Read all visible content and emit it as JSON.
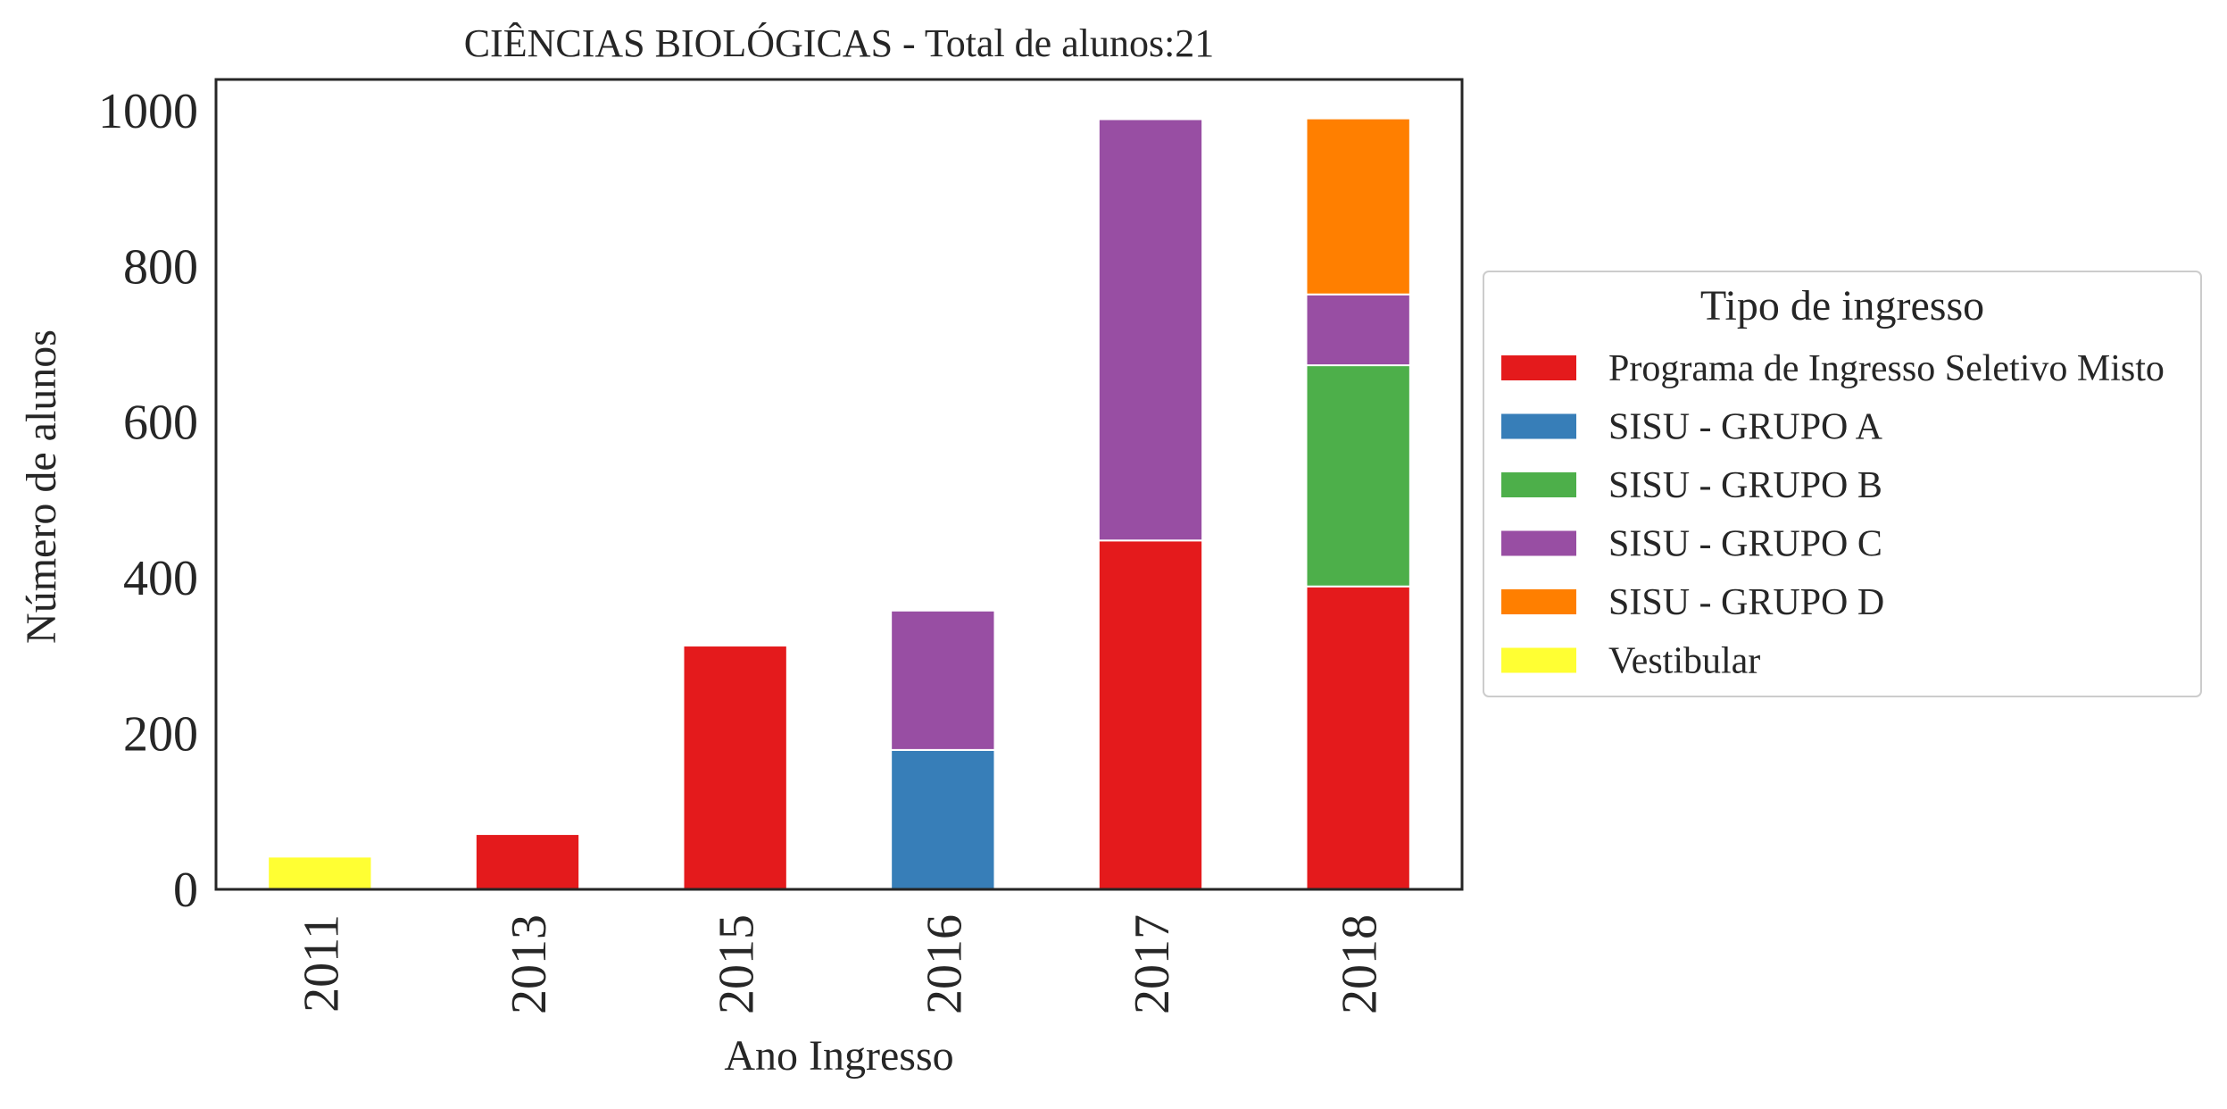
{
  "chart_data": {
    "type": "bar",
    "stacked": true,
    "title": "CIÊNCIAS BIOLÓGICAS - Total de alunos:21",
    "xlabel": "Ano Ingresso",
    "ylabel": "Número de alunos",
    "categories": [
      "2011",
      "2013",
      "2015",
      "2016",
      "2017",
      "2018"
    ],
    "ylim": [
      0,
      1040
    ],
    "yticks": [
      0,
      200,
      400,
      600,
      800,
      1000
    ],
    "ytick_labels": [
      "0",
      "200",
      "400",
      "600",
      "800",
      "1000"
    ],
    "grid": false,
    "legend": {
      "title": "Tipo de ingresso",
      "placement": "center-right outside"
    },
    "series": [
      {
        "name": "Programa de Ingresso Seletivo Misto",
        "color": "#e41a1c",
        "values": [
          0,
          71,
          313,
          0,
          448,
          389
        ]
      },
      {
        "name": "SISU - GRUPO A",
        "color": "#377eb8",
        "values": [
          0,
          0,
          0,
          179,
          0,
          0
        ]
      },
      {
        "name": "SISU - GRUPO B",
        "color": "#4daf4a",
        "values": [
          0,
          0,
          0,
          0,
          0,
          284
        ]
      },
      {
        "name": "SISU - GRUPO C",
        "color": "#984ea3",
        "values": [
          0,
          0,
          0,
          179,
          541,
          91
        ]
      },
      {
        "name": "SISU - GRUPO D",
        "color": "#ff7f00",
        "values": [
          0,
          0,
          0,
          0,
          0,
          226
        ]
      },
      {
        "name": "Vestibular",
        "color": "#ffff33",
        "values": [
          42,
          0,
          0,
          0,
          0,
          0
        ]
      }
    ]
  }
}
